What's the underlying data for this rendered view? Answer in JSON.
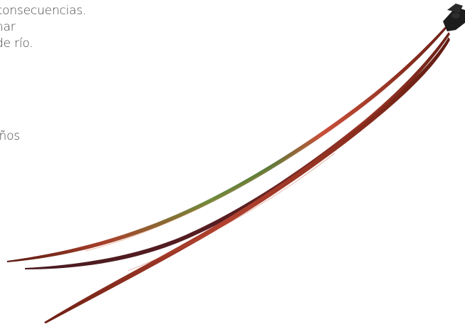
{
  "text_lines": [
    "consecuencias.",
    "nar",
    "de río.",
    "iños",
    "."
  ],
  "image": {
    "subject": "feather-hair-extensions",
    "colors": {
      "feather_main": "#7a2a1d",
      "feather_highlight": "#c9503a",
      "feather_green": "#6a8a3a",
      "clip": "#1c1c1c"
    }
  }
}
